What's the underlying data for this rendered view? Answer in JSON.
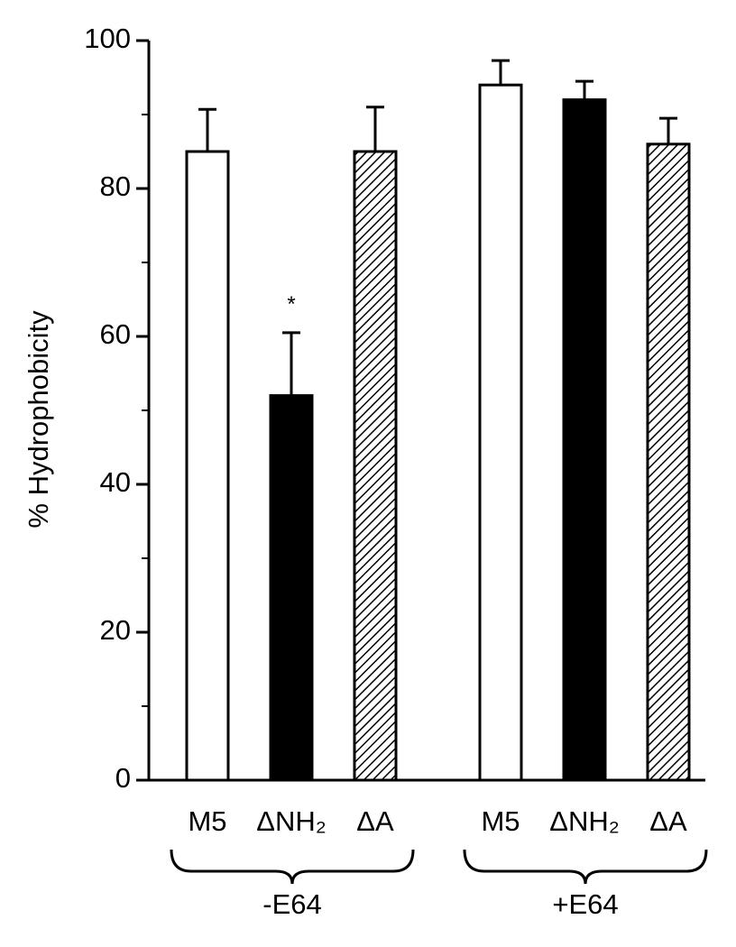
{
  "chart_data": {
    "type": "bar",
    "ylabel": "% Hydrophobicity",
    "categories": [
      "M5",
      "ΔNH₂",
      "ΔA",
      "M5",
      "ΔNH₂",
      "ΔA"
    ],
    "groups": [
      "-E64",
      "+E64"
    ],
    "values": [
      85,
      52,
      85,
      94,
      92,
      86
    ],
    "errors": [
      5.7,
      8.5,
      6,
      3.3,
      2.5,
      3.5
    ],
    "bar_styles": [
      "open",
      "solid",
      "hatched",
      "open",
      "solid",
      "hatched"
    ],
    "annotations": [
      {
        "text": "*",
        "x": "ΔNH₂"
      }
    ],
    "ylim": [
      0,
      100
    ],
    "yticks": [
      0,
      20,
      40,
      60,
      80,
      100
    ],
    "yminorticks": [
      10,
      30,
      50,
      70,
      90
    ]
  }
}
